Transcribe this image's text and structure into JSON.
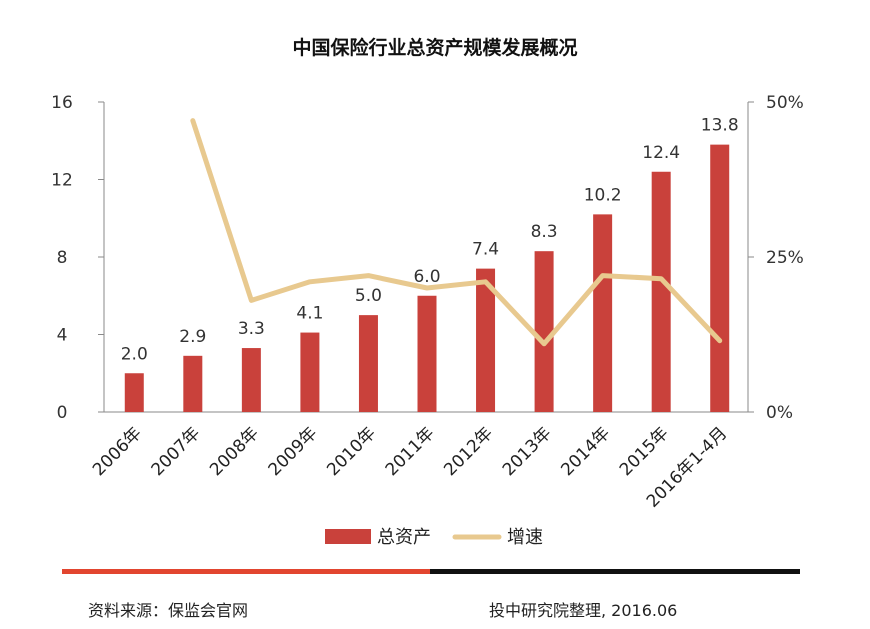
{
  "chart_data": {
    "type": "bar",
    "title": "中国保险行业总资产规模发展概况",
    "categories": [
      "2006年",
      "2007年",
      "2008年",
      "2009年",
      "2010年",
      "2011年",
      "2012年",
      "2013年",
      "2014年",
      "2015年",
      "2016年1-4月"
    ],
    "series": [
      {
        "name": "总资产",
        "type": "bar",
        "axis": "left",
        "color": "#c9413b",
        "values": [
          2.0,
          2.9,
          3.3,
          4.1,
          5.0,
          6.0,
          7.4,
          8.3,
          10.2,
          12.4,
          13.8
        ],
        "labels": [
          "2.0",
          "2.9",
          "3.3",
          "4.1",
          "5.0",
          "6.0",
          "7.4",
          "8.3",
          "10.2",
          "12.4",
          "13.8"
        ]
      },
      {
        "name": "增速",
        "type": "line",
        "axis": "right",
        "color": "#e8c98f",
        "values": [
          null,
          47,
          18,
          21,
          22,
          20,
          21,
          11,
          22,
          21.5,
          11.5
        ]
      }
    ],
    "y_left": {
      "ticks": [
        "0",
        "4",
        "8",
        "12",
        "16"
      ],
      "lim": [
        0,
        16
      ]
    },
    "y_right": {
      "ticks": [
        "0%",
        "25%",
        "50%"
      ],
      "lim": [
        0,
        50
      ]
    },
    "legend_position": "bottom-center"
  },
  "footer": {
    "source": "资料来源：保监会官网",
    "credit": "投中研究院整理, 2016.06"
  }
}
